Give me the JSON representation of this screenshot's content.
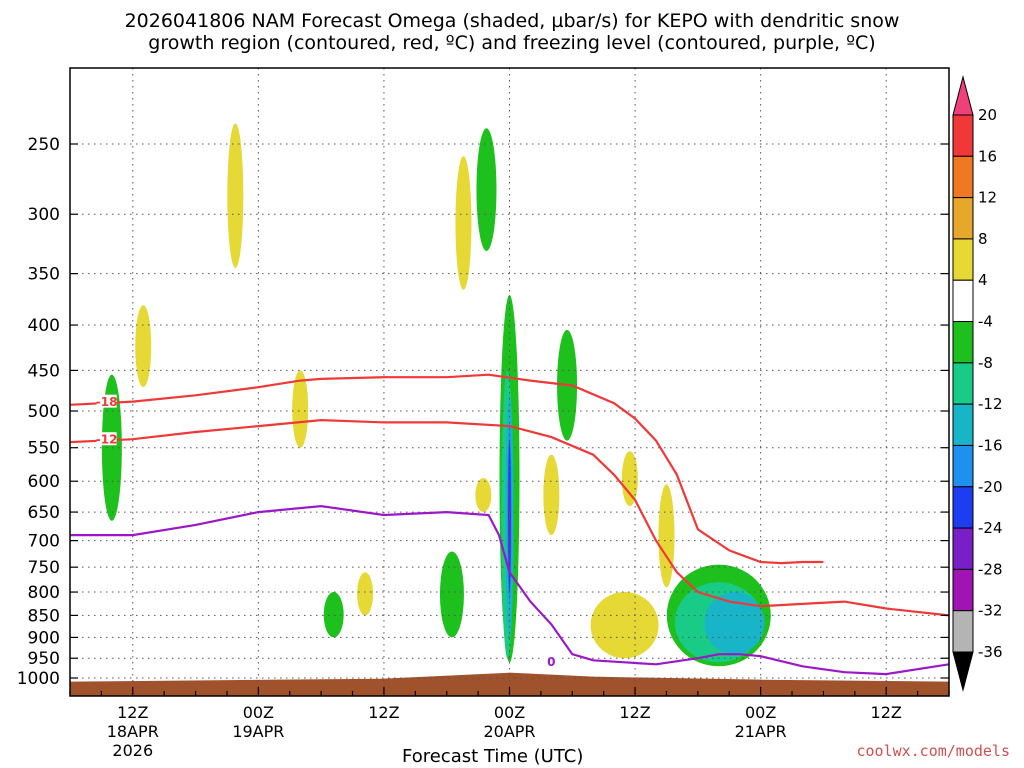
{
  "title": {
    "line1": "2026041806 NAM Forecast Omega (shaded, µbar/s) for KEPO with dendritic snow",
    "line2": "growth region (contoured, red, ºC) and freezing level (contoured, purple, ºC)"
  },
  "credit": "coolwx.com/models",
  "chart_data": {
    "type": "heatmap",
    "title": "2026041806 NAM Forecast Omega (shaded, µbar/s) for KEPO with dendritic snow growth region (contoured, red, ºC) and freezing level (contoured, purple, ºC)",
    "xlabel": "Forecast Time (UTC)",
    "ylabel": "",
    "x_unit": "hours since 2026-04-18 06Z",
    "xlim": [
      0,
      84
    ],
    "ylim": [
      1050,
      200
    ],
    "y_scale": "log",
    "grid": true,
    "y_ticks": [
      250,
      300,
      350,
      400,
      450,
      500,
      550,
      600,
      650,
      700,
      750,
      800,
      850,
      900,
      950,
      1000
    ],
    "x_ticks": [
      {
        "x": 6,
        "label": "12Z",
        "sub": "18APR",
        "sub2": "2026"
      },
      {
        "x": 18,
        "label": "00Z",
        "sub": "19APR",
        "sub2": ""
      },
      {
        "x": 30,
        "label": "12Z",
        "sub": "",
        "sub2": ""
      },
      {
        "x": 42,
        "label": "00Z",
        "sub": "20APR",
        "sub2": ""
      },
      {
        "x": 54,
        "label": "12Z",
        "sub": "",
        "sub2": ""
      },
      {
        "x": 66,
        "label": "00Z",
        "sub": "21APR",
        "sub2": ""
      },
      {
        "x": 78,
        "label": "12Z",
        "sub": "",
        "sub2": ""
      }
    ],
    "colorbar": {
      "labels": [
        "20",
        "16",
        "12",
        "8",
        "4",
        "-4",
        "-8",
        "-12",
        "-16",
        "-20",
        "-24",
        "-28",
        "-32",
        "-36"
      ],
      "colors": [
        "#f0407a",
        "#f03838",
        "#f07820",
        "#e6a82a",
        "#e6d835",
        "#ffffff",
        "#1ec01e",
        "#18cc88",
        "#18b4c8",
        "#1e90f0",
        "#1e3cf0",
        "#7a1ec8",
        "#a014b4",
        "#b4b4b4",
        "#000000"
      ]
    },
    "omega_fields": [
      {
        "level": "pos4",
        "x": 15.8,
        "p_top": 237,
        "p_bot": 345
      },
      {
        "level": "pos4",
        "x": 37.6,
        "p_top": 258,
        "p_bot": 365
      },
      {
        "level": "pos4",
        "x": 7.0,
        "p_top": 380,
        "p_bot": 470
      },
      {
        "level": "pos4",
        "x": 22.0,
        "p_top": 450,
        "p_bot": 550
      },
      {
        "level": "pos4",
        "x": 46.0,
        "p_top": 560,
        "p_bot": 690
      },
      {
        "level": "pos4",
        "x": 39.5,
        "p_top": 595,
        "p_bot": 650
      },
      {
        "level": "pos4",
        "x": 53.5,
        "p_top": 555,
        "p_bot": 640
      },
      {
        "level": "pos4",
        "x": 57.0,
        "p_top": 605,
        "p_bot": 790
      },
      {
        "level": "pos4",
        "x": 53.0,
        "p_top": 800,
        "p_bot": 950
      },
      {
        "level": "pos4",
        "x": 28.2,
        "p_top": 760,
        "p_bot": 850
      },
      {
        "level": "neg4",
        "x": 39.8,
        "p_top": 240,
        "p_bot": 330
      },
      {
        "level": "neg4",
        "x": 42.0,
        "p_top": 370,
        "p_bot": 960
      },
      {
        "level": "neg4",
        "x": 47.5,
        "p_top": 405,
        "p_bot": 540
      },
      {
        "level": "neg4",
        "x": 36.5,
        "p_top": 720,
        "p_bot": 900
      },
      {
        "level": "neg4",
        "x": 62.0,
        "p_top": 745,
        "p_bot": 970
      },
      {
        "level": "neg4",
        "x": 4.0,
        "p_top": 455,
        "p_bot": 665
      },
      {
        "level": "neg4",
        "x": 25.2,
        "p_top": 800,
        "p_bot": 900
      },
      {
        "level": "neg8",
        "x": 41.8,
        "p_top": 450,
        "p_bot": 950
      },
      {
        "level": "neg8",
        "x": 62.0,
        "p_top": 780,
        "p_bot": 960
      },
      {
        "level": "neg12",
        "x": 42.0,
        "p_top": 480,
        "p_bot": 900
      },
      {
        "level": "neg12",
        "x": 63.5,
        "p_top": 800,
        "p_bot": 940
      },
      {
        "level": "neg16",
        "x": 42.0,
        "p_top": 520,
        "p_bot": 820
      },
      {
        "level": "neg20",
        "x": 42.0,
        "p_top": 540,
        "p_bot": 800
      },
      {
        "level": "neg24",
        "x": 42.0,
        "p_top": 600,
        "p_bot": 760
      }
    ],
    "contours": [
      {
        "name": "-18",
        "color": "#f03838",
        "x": [
          0,
          6,
          12,
          18,
          22,
          24,
          30,
          36,
          40,
          44,
          48,
          52,
          54,
          56,
          58,
          60,
          63,
          66,
          68,
          70,
          72
        ],
        "y": [
          492,
          488,
          480,
          470,
          462,
          460,
          458,
          458,
          455,
          462,
          468,
          490,
          510,
          540,
          590,
          680,
          718,
          740,
          742,
          740,
          740
        ],
        "label_x": 3.5,
        "label_y": 488
      },
      {
        "name": "-12",
        "color": "#f03838",
        "x": [
          0,
          6,
          12,
          18,
          24,
          30,
          36,
          42,
          46,
          50,
          52,
          54,
          56,
          58,
          60,
          63,
          66,
          70,
          74,
          78,
          84
        ],
        "y": [
          542,
          538,
          528,
          520,
          512,
          515,
          515,
          520,
          535,
          560,
          590,
          630,
          700,
          760,
          800,
          820,
          830,
          825,
          820,
          835,
          850
        ],
        "label_x": 3.5,
        "label_y": 538
      },
      {
        "name": "0",
        "color": "#9a18c8",
        "x": [
          0,
          6,
          12,
          18,
          24,
          30,
          36,
          40,
          41,
          42,
          44,
          46,
          48,
          50,
          53,
          56,
          60,
          62,
          64,
          66,
          70,
          74,
          78,
          84
        ],
        "y": [
          690,
          690,
          672,
          650,
          640,
          655,
          650,
          655,
          690,
          760,
          820,
          870,
          940,
          955,
          960,
          965,
          950,
          940,
          940,
          945,
          970,
          985,
          990,
          965
        ],
        "label_x": 46,
        "label_y": 958
      }
    ]
  }
}
